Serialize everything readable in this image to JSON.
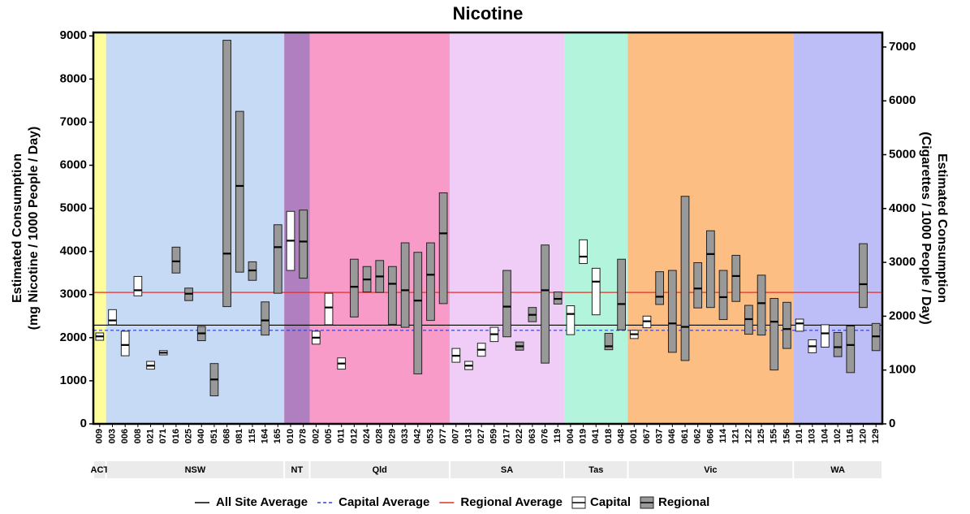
{
  "chart_data": {
    "type": "range-bar",
    "title": "Nicotine",
    "y_label": [
      "Estimated Consumption",
      "(mg Nicotine / 1000 People / Day)"
    ],
    "y2_label": [
      "Estimated Consumption",
      "(Cigarettes / 1000 People / Day)"
    ],
    "ylim": [
      0,
      9080
    ],
    "yticks": [
      0,
      1000,
      2000,
      3000,
      4000,
      5000,
      6000,
      7000,
      8000,
      9000
    ],
    "y2lim": [
      0,
      7270
    ],
    "y2ticks": [
      0,
      1000,
      2000,
      3000,
      4000,
      5000,
      6000,
      7000
    ],
    "groups": {
      "capital": {
        "name": "Capital",
        "color": "#ffffff"
      },
      "regional": {
        "name": "Regional",
        "color": "#999999"
      }
    },
    "averages": [
      {
        "name": "All Site Average",
        "value": 2290,
        "color": "#000000",
        "dash": false
      },
      {
        "name": "Capital Average",
        "value": 2170,
        "color": "#2b3bd6",
        "dash": true
      },
      {
        "name": "Regional Average",
        "value": 3050,
        "color": "#e0302a",
        "dash": false
      }
    ],
    "regions": [
      {
        "name": "ACT",
        "color": "#fdfd9c",
        "sites": [
          {
            "id": "009",
            "group": "capital",
            "low": 1940,
            "high": 2110,
            "median": 2030
          }
        ]
      },
      {
        "name": "NSW",
        "color": "#c6daf6",
        "sites": [
          {
            "id": "003",
            "group": "capital",
            "low": 2300,
            "high": 2650,
            "median": 2400
          },
          {
            "id": "006",
            "group": "capital",
            "low": 1580,
            "high": 2150,
            "median": 1830
          },
          {
            "id": "008",
            "group": "capital",
            "low": 2970,
            "high": 3420,
            "median": 3100
          },
          {
            "id": "021",
            "group": "capital",
            "low": 1270,
            "high": 1450,
            "median": 1350
          },
          {
            "id": "071",
            "group": "capital",
            "low": 1600,
            "high": 1700,
            "median": 1650
          },
          {
            "id": "016",
            "group": "regional",
            "low": 3500,
            "high": 4100,
            "median": 3770
          },
          {
            "id": "025",
            "group": "regional",
            "low": 2860,
            "high": 3150,
            "median": 3020
          },
          {
            "id": "040",
            "group": "regional",
            "low": 1930,
            "high": 2260,
            "median": 2100
          },
          {
            "id": "051",
            "group": "regional",
            "low": 650,
            "high": 1400,
            "median": 1030
          },
          {
            "id": "068",
            "group": "regional",
            "low": 2720,
            "high": 8900,
            "median": 3950
          },
          {
            "id": "081",
            "group": "regional",
            "low": 3520,
            "high": 7250,
            "median": 5520
          },
          {
            "id": "115",
            "group": "regional",
            "low": 3330,
            "high": 3760,
            "median": 3560
          },
          {
            "id": "164",
            "group": "regional",
            "low": 2060,
            "high": 2830,
            "median": 2400
          },
          {
            "id": "165",
            "group": "regional",
            "low": 3030,
            "high": 4620,
            "median": 4100
          }
        ]
      },
      {
        "name": "NT",
        "color": "#b07fc0",
        "sites": [
          {
            "id": "010",
            "group": "capital",
            "low": 3560,
            "high": 4930,
            "median": 4250
          },
          {
            "id": "078",
            "group": "regional",
            "low": 3380,
            "high": 4960,
            "median": 4230
          }
        ]
      },
      {
        "name": "Qld",
        "color": "#f99bc9",
        "sites": [
          {
            "id": "002",
            "group": "capital",
            "low": 1850,
            "high": 2150,
            "median": 2000
          },
          {
            "id": "005",
            "group": "capital",
            "low": 2300,
            "high": 3030,
            "median": 2700
          },
          {
            "id": "011",
            "group": "capital",
            "low": 1270,
            "high": 1530,
            "median": 1400
          },
          {
            "id": "012",
            "group": "regional",
            "low": 2480,
            "high": 3820,
            "median": 3180
          },
          {
            "id": "024",
            "group": "regional",
            "low": 3060,
            "high": 3650,
            "median": 3350
          },
          {
            "id": "028",
            "group": "regional",
            "low": 3050,
            "high": 3790,
            "median": 3420
          },
          {
            "id": "029",
            "group": "regional",
            "low": 2310,
            "high": 3650,
            "median": 3250
          },
          {
            "id": "033",
            "group": "regional",
            "low": 2240,
            "high": 4200,
            "median": 3100
          },
          {
            "id": "042",
            "group": "regional",
            "low": 1160,
            "high": 3980,
            "median": 2860
          },
          {
            "id": "053",
            "group": "regional",
            "low": 2400,
            "high": 4200,
            "median": 3460
          },
          {
            "id": "077",
            "group": "regional",
            "low": 2790,
            "high": 5360,
            "median": 4420
          }
        ]
      },
      {
        "name": "SA",
        "color": "#efcdf7",
        "sites": [
          {
            "id": "007",
            "group": "capital",
            "low": 1430,
            "high": 1750,
            "median": 1580
          },
          {
            "id": "013",
            "group": "capital",
            "low": 1260,
            "high": 1450,
            "median": 1350
          },
          {
            "id": "027",
            "group": "capital",
            "low": 1570,
            "high": 1870,
            "median": 1720
          },
          {
            "id": "059",
            "group": "capital",
            "low": 1910,
            "high": 2240,
            "median": 2080
          },
          {
            "id": "017",
            "group": "regional",
            "low": 2020,
            "high": 3560,
            "median": 2720
          },
          {
            "id": "022",
            "group": "regional",
            "low": 1710,
            "high": 1900,
            "median": 1800
          },
          {
            "id": "063",
            "group": "regional",
            "low": 2370,
            "high": 2700,
            "median": 2530
          },
          {
            "id": "076",
            "group": "regional",
            "low": 1410,
            "high": 4150,
            "median": 3100
          },
          {
            "id": "119",
            "group": "regional",
            "low": 2780,
            "high": 3060,
            "median": 2900
          }
        ]
      },
      {
        "name": "Tas",
        "color": "#b3f5dc",
        "sites": [
          {
            "id": "004",
            "group": "capital",
            "low": 2070,
            "high": 2740,
            "median": 2550
          },
          {
            "id": "019",
            "group": "capital",
            "low": 3720,
            "high": 4270,
            "median": 3880
          },
          {
            "id": "041",
            "group": "capital",
            "low": 2530,
            "high": 3610,
            "median": 3300
          },
          {
            "id": "018",
            "group": "regional",
            "low": 1720,
            "high": 2100,
            "median": 1800
          },
          {
            "id": "048",
            "group": "regional",
            "low": 2180,
            "high": 3820,
            "median": 2780
          }
        ]
      },
      {
        "name": "Vic",
        "color": "#fcbe82",
        "sites": [
          {
            "id": "001",
            "group": "capital",
            "low": 1980,
            "high": 2170,
            "median": 2080
          },
          {
            "id": "067",
            "group": "capital",
            "low": 2230,
            "high": 2500,
            "median": 2380
          },
          {
            "id": "037",
            "group": "regional",
            "low": 2770,
            "high": 3530,
            "median": 2950
          },
          {
            "id": "046",
            "group": "regional",
            "low": 1660,
            "high": 3560,
            "median": 2330
          },
          {
            "id": "061",
            "group": "regional",
            "low": 1470,
            "high": 5280,
            "median": 2250
          },
          {
            "id": "062",
            "group": "regional",
            "low": 2690,
            "high": 3740,
            "median": 3140
          },
          {
            "id": "066",
            "group": "regional",
            "low": 2700,
            "high": 4480,
            "median": 3940
          },
          {
            "id": "114",
            "group": "regional",
            "low": 2420,
            "high": 3560,
            "median": 2940
          },
          {
            "id": "121",
            "group": "regional",
            "low": 2840,
            "high": 3910,
            "median": 3430
          },
          {
            "id": "122",
            "group": "regional",
            "low": 2080,
            "high": 2750,
            "median": 2430
          },
          {
            "id": "125",
            "group": "regional",
            "low": 2060,
            "high": 3450,
            "median": 2800
          },
          {
            "id": "155",
            "group": "regional",
            "low": 1250,
            "high": 2910,
            "median": 2370
          },
          {
            "id": "156",
            "group": "regional",
            "low": 1750,
            "high": 2820,
            "median": 2200
          }
        ]
      },
      {
        "name": "WA",
        "color": "#bdbdf7",
        "sites": [
          {
            "id": "101",
            "group": "capital",
            "low": 2150,
            "high": 2430,
            "median": 2330
          },
          {
            "id": "103",
            "group": "capital",
            "low": 1650,
            "high": 1950,
            "median": 1800
          },
          {
            "id": "104",
            "group": "capital",
            "low": 1780,
            "high": 2300,
            "median": 2100
          },
          {
            "id": "102",
            "group": "regional",
            "low": 1560,
            "high": 2120,
            "median": 1780
          },
          {
            "id": "116",
            "group": "regional",
            "low": 1190,
            "high": 2270,
            "median": 1830
          },
          {
            "id": "120",
            "group": "regional",
            "low": 2700,
            "high": 4180,
            "median": 3240
          },
          {
            "id": "129",
            "group": "regional",
            "low": 1700,
            "high": 2330,
            "median": 2030
          }
        ]
      }
    ]
  }
}
